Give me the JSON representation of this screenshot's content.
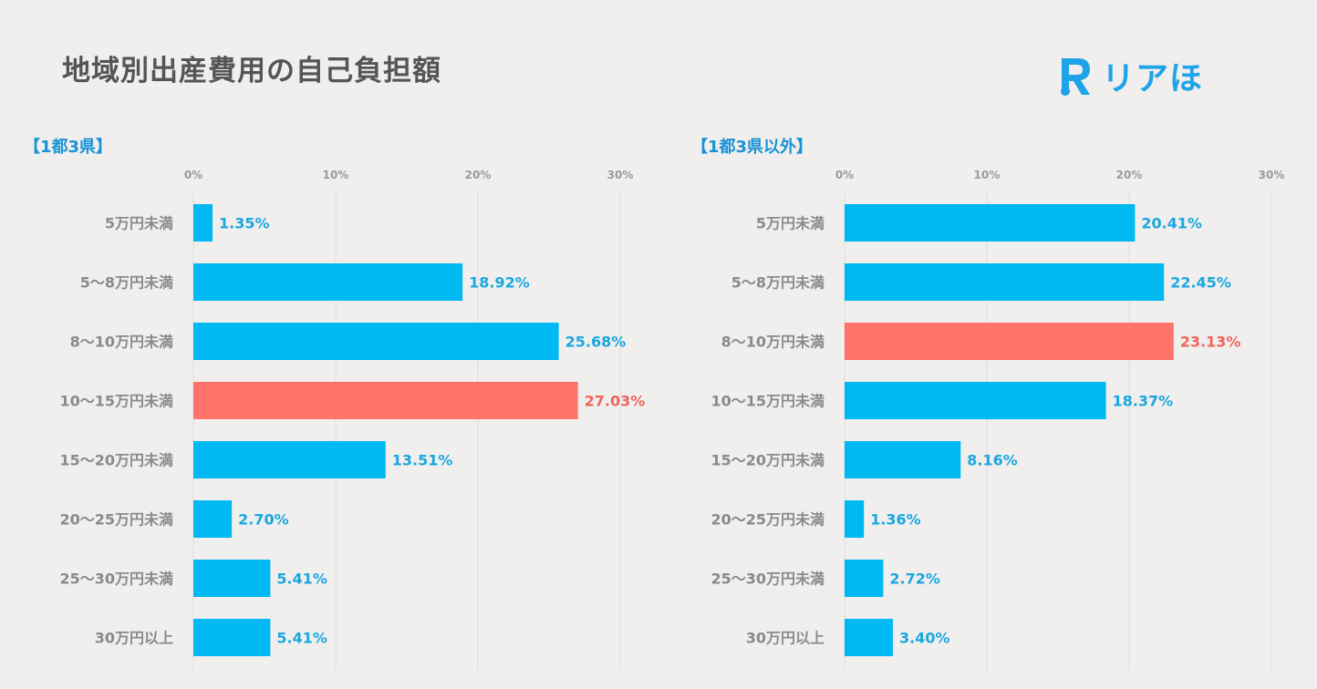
{
  "title": "地域別出産費用の自己負担額",
  "logo": {
    "text": "リアほ",
    "icon": "r-logo-icon",
    "color": "#1ea3e8"
  },
  "colors": {
    "bar": "#00b9f2",
    "highlight": "#ff736b",
    "value_text": "#1aa7e0",
    "highlight_text": "#f0645c"
  },
  "panels": [
    {
      "label": "【1都3県】"
    },
    {
      "label": "【1都3県以外】"
    }
  ],
  "chart_data": [
    {
      "type": "bar",
      "orientation": "horizontal",
      "title": "【1都3県】",
      "categories": [
        "5万円未満",
        "5〜8万円未満",
        "8〜10万円未満",
        "10〜15万円未満",
        "15〜20万円未満",
        "20〜25万円未満",
        "25〜30万円未満",
        "30万円以上"
      ],
      "values": [
        1.35,
        18.92,
        25.68,
        27.03,
        13.51,
        2.7,
        5.41,
        5.41
      ],
      "value_labels": [
        "1.35%",
        "18.92%",
        "25.68%",
        "27.03%",
        "13.51%",
        "2.70%",
        "5.41%",
        "5.41%"
      ],
      "highlight_index": 3,
      "xlim": [
        0,
        30
      ],
      "xticks": [
        0,
        10,
        20,
        30
      ],
      "xtick_labels": [
        "0%",
        "10%",
        "20%",
        "30%"
      ],
      "grid": true,
      "xlabel": "",
      "ylabel": ""
    },
    {
      "type": "bar",
      "orientation": "horizontal",
      "title": "【1都3県以外】",
      "categories": [
        "5万円未満",
        "5〜8万円未満",
        "8〜10万円未満",
        "10〜15万円未満",
        "15〜20万円未満",
        "20〜25万円未満",
        "25〜30万円未満",
        "30万円以上"
      ],
      "values": [
        20.41,
        22.45,
        23.13,
        18.37,
        8.16,
        1.36,
        2.72,
        3.4
      ],
      "value_labels": [
        "20.41%",
        "22.45%",
        "23.13%",
        "18.37%",
        "8.16%",
        "1.36%",
        "2.72%",
        "3.40%"
      ],
      "highlight_index": 2,
      "xlim": [
        0,
        30
      ],
      "xticks": [
        0,
        10,
        20,
        30
      ],
      "xtick_labels": [
        "0%",
        "10%",
        "20%",
        "30%"
      ],
      "grid": true,
      "xlabel": "",
      "ylabel": ""
    }
  ]
}
